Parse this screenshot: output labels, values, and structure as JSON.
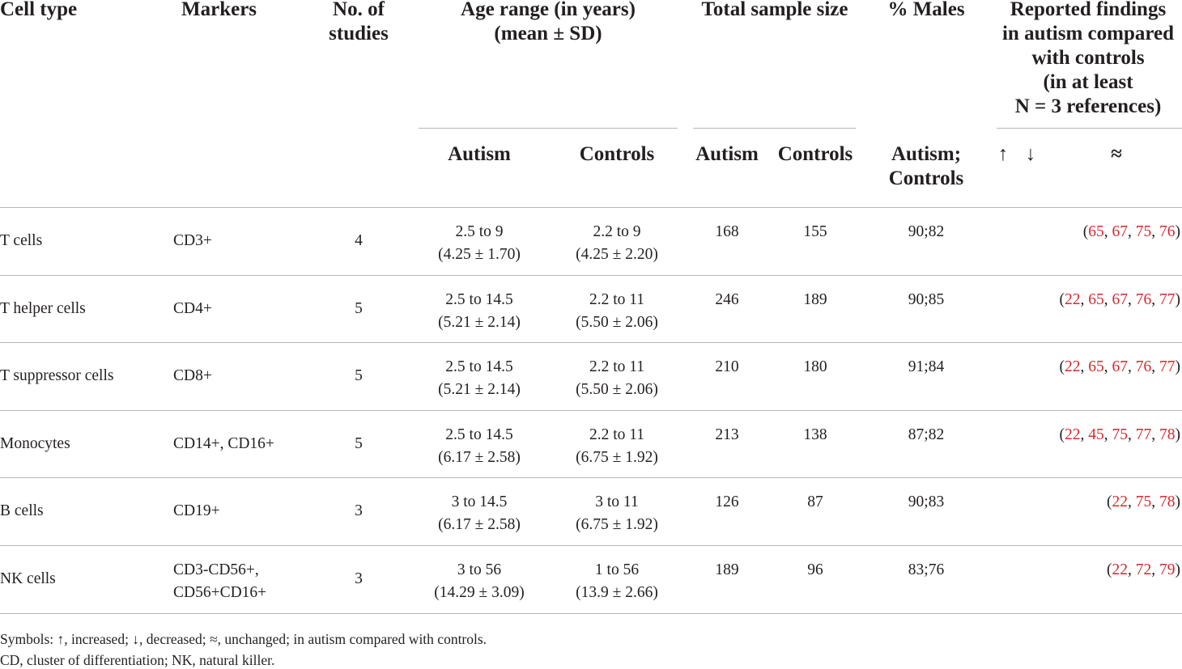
{
  "headers": {
    "cell_type": "Cell type",
    "markers": "Markers",
    "no_studies_1": "No. of",
    "no_studies_2": "studies",
    "age_range_1": "Age range (in years)",
    "age_range_2": "(mean ± SD)",
    "total_sample": "Total sample size",
    "pct_males": "% Males",
    "reported_1": "Reported findings",
    "reported_2": "in autism compared",
    "reported_3": "with controls",
    "reported_4": "(in at least",
    "reported_5": "N = 3 references)",
    "age_autism": "Autism",
    "age_controls": "Controls",
    "sample_autism": "Autism",
    "sample_controls": "Controls",
    "males_sub_1": "Autism;",
    "males_sub_2": "Controls",
    "sym_up": "↑",
    "sym_down": "↓",
    "sym_eq": "≈"
  },
  "rows": [
    {
      "cell_type": "T cells",
      "markers_1": "CD3+",
      "markers_2": "",
      "studies": "4",
      "age_autism_1": "2.5 to 9",
      "age_autism_2": "(4.25 ± 1.70)",
      "age_controls_1": "2.2 to 9",
      "age_controls_2": "(4.25 ± 2.20)",
      "n_autism": "168",
      "n_controls": "155",
      "males": "90;82",
      "refs": [
        "65",
        "67",
        "75",
        "76"
      ]
    },
    {
      "cell_type": "T helper cells",
      "markers_1": "CD4+",
      "markers_2": "",
      "studies": "5",
      "age_autism_1": "2.5 to 14.5",
      "age_autism_2": "(5.21 ± 2.14)",
      "age_controls_1": "2.2 to 11",
      "age_controls_2": "(5.50 ± 2.06)",
      "n_autism": "246",
      "n_controls": "189",
      "males": "90;85",
      "refs": [
        "22",
        "65",
        "67",
        "76",
        "77"
      ]
    },
    {
      "cell_type": "T suppressor cells",
      "markers_1": "CD8+",
      "markers_2": "",
      "studies": "5",
      "age_autism_1": "2.5 to 14.5",
      "age_autism_2": "(5.21 ± 2.14)",
      "age_controls_1": "2.2 to 11",
      "age_controls_2": "(5.50 ± 2.06)",
      "n_autism": "210",
      "n_controls": "180",
      "males": "91;84",
      "refs": [
        "22",
        "65",
        "67",
        "76",
        "77"
      ]
    },
    {
      "cell_type": "Monocytes",
      "markers_1": "CD14+, CD16+",
      "markers_2": "",
      "studies": "5",
      "age_autism_1": "2.5 to 14.5",
      "age_autism_2": "(6.17 ± 2.58)",
      "age_controls_1": "2.2 to 11",
      "age_controls_2": "(6.75 ± 1.92)",
      "n_autism": "213",
      "n_controls": "138",
      "males": "87;82",
      "refs": [
        "22",
        "45",
        "75",
        "77",
        "78"
      ]
    },
    {
      "cell_type": "B cells",
      "markers_1": "CD19+",
      "markers_2": "",
      "studies": "3",
      "age_autism_1": "3 to 14.5",
      "age_autism_2": "(6.17 ± 2.58)",
      "age_controls_1": "3 to 11",
      "age_controls_2": "(6.75 ± 1.92)",
      "n_autism": "126",
      "n_controls": "87",
      "males": "90;83",
      "refs": [
        "22",
        "75",
        "78"
      ]
    },
    {
      "cell_type": "NK cells",
      "markers_1": "CD3-CD56+,",
      "markers_2": "CD56+CD16+",
      "studies": "3",
      "age_autism_1": "3 to 56",
      "age_autism_2": "(14.29 ± 3.09)",
      "age_controls_1": "1 to 56",
      "age_controls_2": "(13.9 ± 2.66)",
      "n_autism": "189",
      "n_controls": "96",
      "males": "83;76",
      "refs": [
        "22",
        "72",
        "79"
      ]
    }
  ],
  "footnotes": {
    "symbols": "Symbols: ↑, increased; ↓, decreased; ≈, unchanged; in autism compared with controls.",
    "abbrev": "CD, cluster of differentiation; NK, natural killer."
  },
  "colors": {
    "text": "#231f20",
    "reference": "#d7282f",
    "rule": "#b7b7b7"
  }
}
